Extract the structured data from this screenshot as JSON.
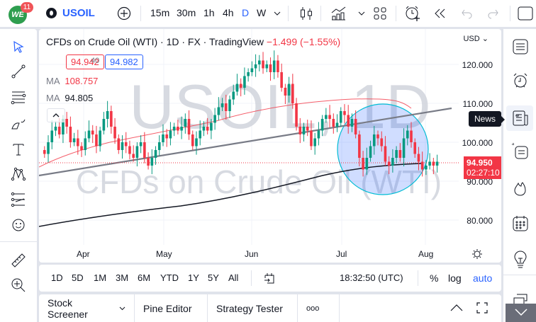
{
  "topbar": {
    "logo_text": "WE",
    "notification_count": "11",
    "symbol": "USOIL",
    "intervals": [
      "15m",
      "30m",
      "1h",
      "4h",
      "D",
      "W"
    ],
    "active_interval": "D"
  },
  "legend": {
    "title": "CFDs on Crude Oil (WTI) · 1D · FX  · TradingView",
    "change": "−1.499 (−1.55%)",
    "bid": "94.942",
    "spread": "40",
    "ask": "94.982",
    "ma1_label": "MA",
    "ma1_value": "108.757",
    "ma2_label": "MA",
    "ma2_value": "94.805"
  },
  "watermark": {
    "line1": "USOIL, 1D",
    "line2": "CFDs on Crude Oil (WTI)"
  },
  "price_axis": {
    "currency": "USD",
    "ticks": [
      "120.000",
      "110.000",
      "100.000",
      "90.000",
      "80.000"
    ],
    "current_price": "94.950",
    "countdown": "02:27:10"
  },
  "time_axis": {
    "ticks": [
      "Apr",
      "May",
      "Jun",
      "Jul",
      "Aug"
    ]
  },
  "bottom_toolbar": {
    "ranges": [
      "1D",
      "5D",
      "1M",
      "3M",
      "6M",
      "YTD",
      "1Y",
      "5Y",
      "All"
    ],
    "clock": "18:32:50 (UTC)",
    "percent": "%",
    "log": "log",
    "auto": "auto"
  },
  "panel": {
    "tabs": [
      "Stock Screener",
      "Pine Editor",
      "Strategy Tester"
    ],
    "more": "ooo"
  },
  "tooltip": {
    "news": "News"
  },
  "colors": {
    "up": "#089981",
    "down": "#f23645",
    "accent": "#2962ff",
    "ma_red": "#f23645",
    "circle_fill": "#2962ff",
    "circle_stroke": "#00bcd4"
  },
  "chart_data": {
    "type": "candlestick",
    "title": "CFDs on Crude Oil (WTI) · 1D",
    "ylim": [
      75,
      127
    ],
    "y_ticks": [
      80,
      90,
      100,
      110,
      120
    ],
    "x_ticks": [
      "Apr",
      "May",
      "Jun",
      "Jul",
      "Aug"
    ],
    "last_price": 94.95,
    "ma_fast_last": 108.757,
    "ma_slow_last": 94.805,
    "annotations": [
      "ascending trendline",
      "highlight circle around July lows"
    ]
  }
}
